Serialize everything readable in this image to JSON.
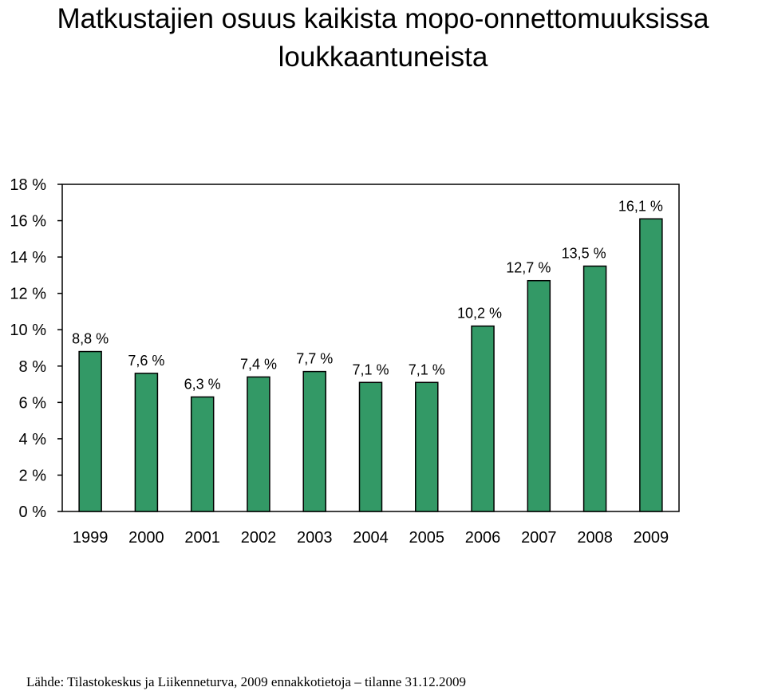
{
  "chart_data": {
    "type": "bar",
    "title": [
      "Matkustajien osuus kaikista mopo-onnettomuuksissa",
      "loukkaantuneista"
    ],
    "categories": [
      "1999",
      "2000",
      "2001",
      "2002",
      "2003",
      "2004",
      "2005",
      "2006",
      "2007",
      "2008",
      "2009"
    ],
    "values": [
      8.8,
      7.6,
      6.3,
      7.4,
      7.7,
      7.1,
      7.1,
      10.2,
      12.7,
      13.5,
      16.1
    ],
    "data_labels": [
      "8,8 %",
      "7,6 %",
      "6,3 %",
      "7,4 %",
      "7,7 %",
      "7,1 %",
      "7,1 %",
      "10,2 %",
      "12,7 %",
      "13,5 %",
      "16,1 %"
    ],
    "y_ticks": [
      0,
      2,
      4,
      6,
      8,
      10,
      12,
      14,
      16,
      18
    ],
    "y_tick_labels": [
      "0 %",
      "2 %",
      "4 %",
      "6 %",
      "8 %",
      "10 %",
      "12 %",
      "14 %",
      "16 %",
      "18 %"
    ],
    "ylim": [
      0,
      18
    ],
    "xlabel": "",
    "ylabel": "",
    "bar_color": "#339966",
    "grid": false,
    "legend": false
  },
  "source_text": "Lähde: Tilastokeskus ja Liikenneturva, 2009 ennakkotietoja – tilanne 31.12.2009"
}
